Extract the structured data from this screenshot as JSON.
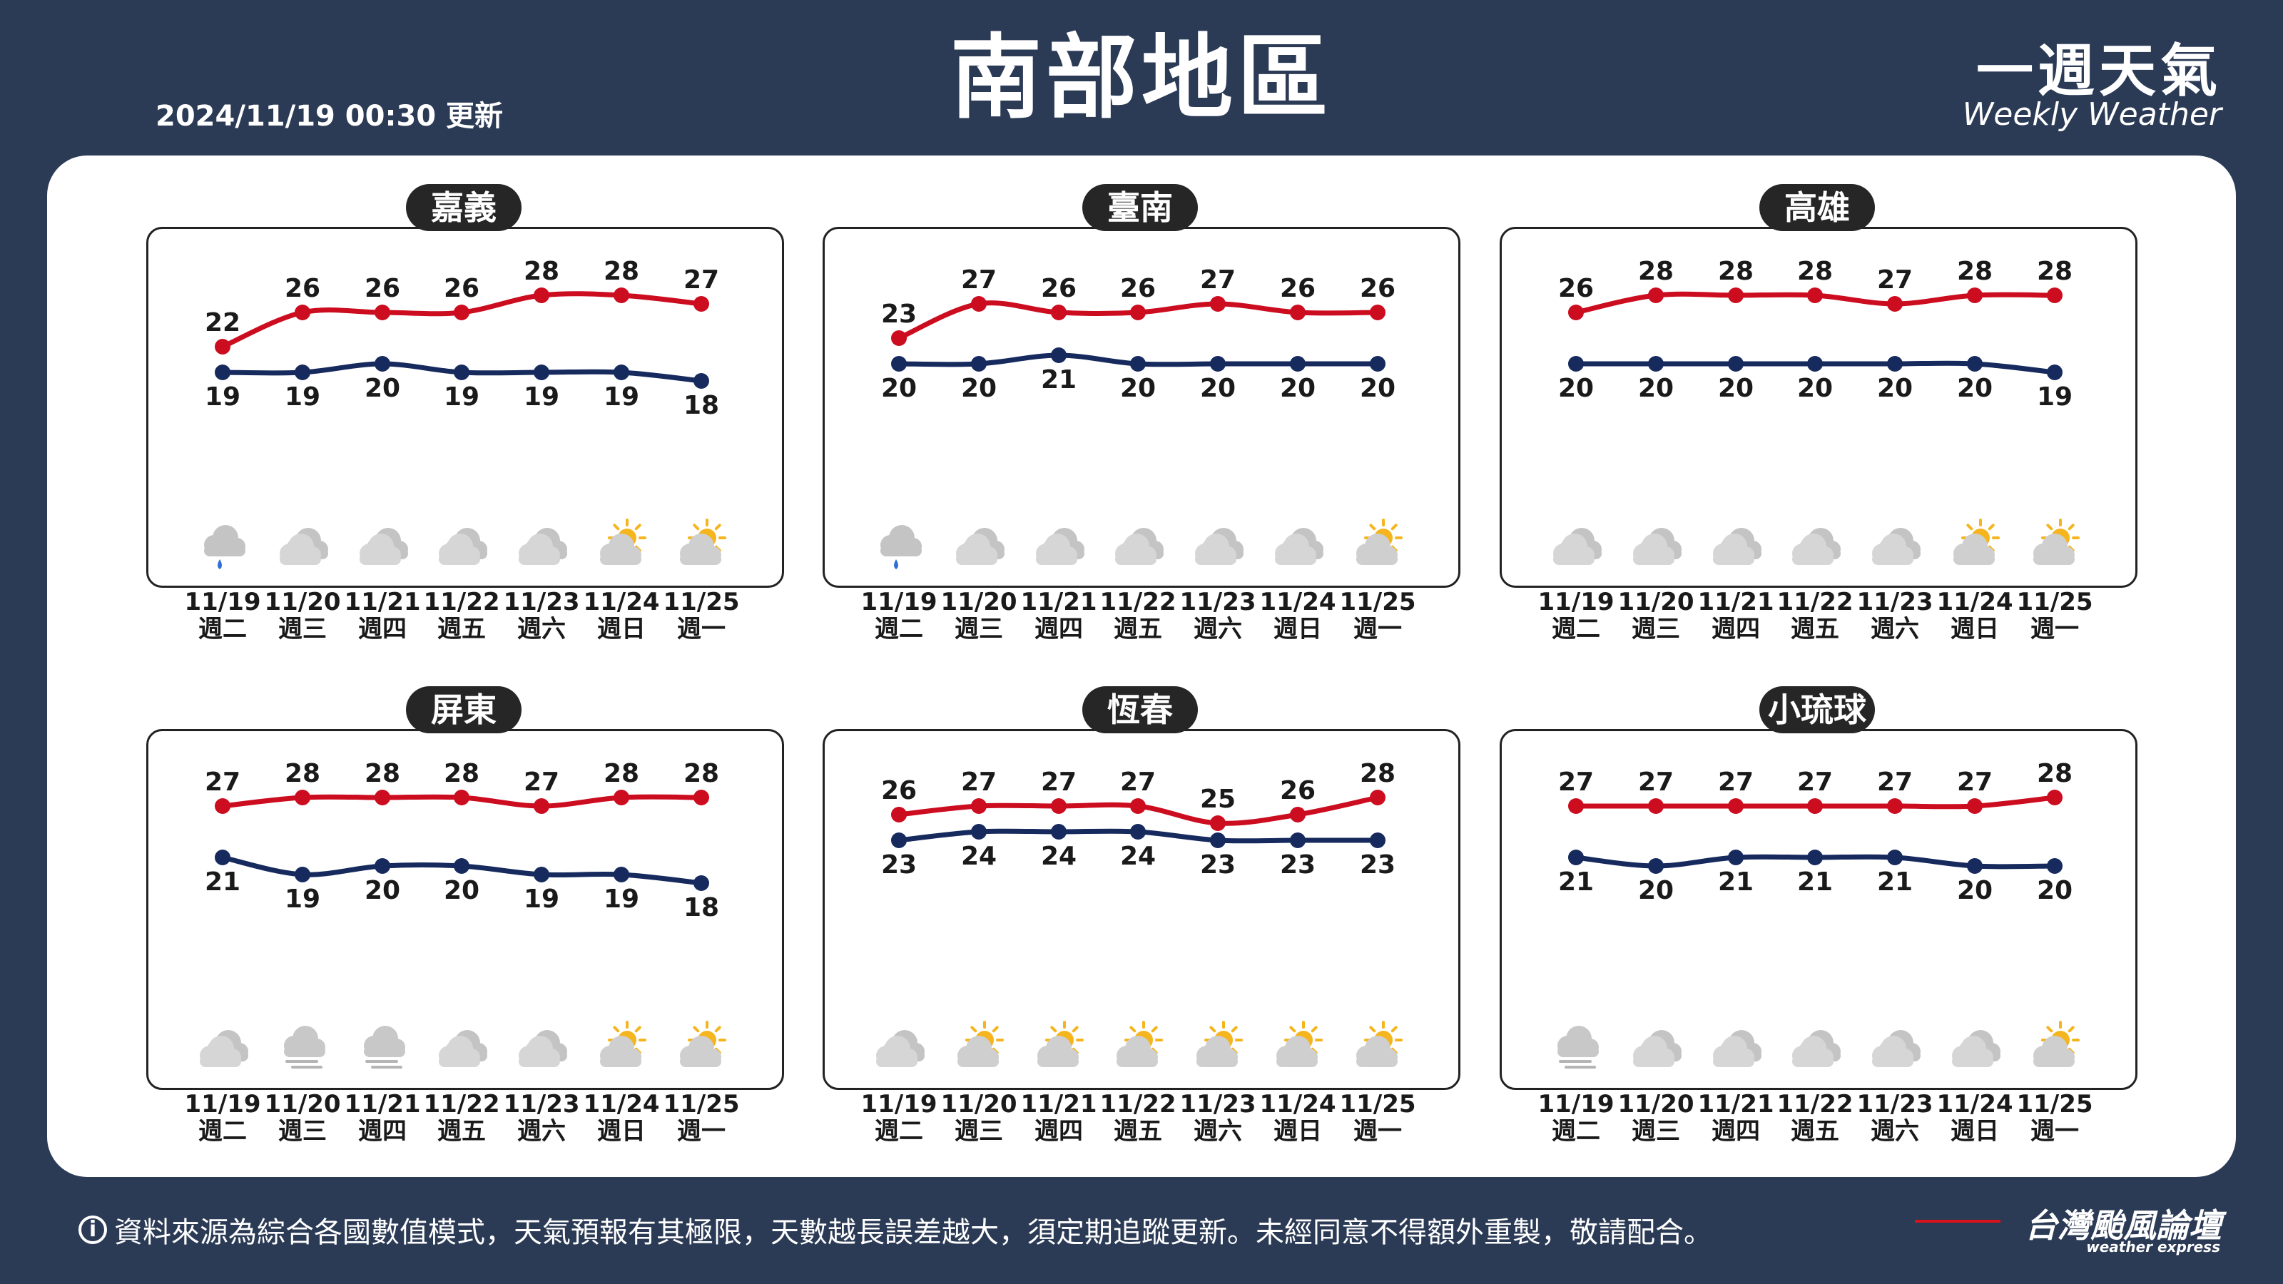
{
  "title": "南部地區",
  "update_time": "2024/11/19 00:30 更新",
  "brand": {
    "title": "一週天氣",
    "subtitle": "Weekly Weather"
  },
  "footer": {
    "info_icon": "i",
    "note": "資料來源為綜合各國數值模式，天氣預報有其極限，天數越長誤差越大，須定期追蹤更新。未經同意不得額外重製，敬請配合。",
    "logo_main": "台灣颱風論壇",
    "logo_sub": "weather express"
  },
  "colors": {
    "high": "#cc0c1f",
    "low": "#162a5e",
    "background": "#2b3a55"
  },
  "dates": [
    "11/19",
    "11/20",
    "11/21",
    "11/22",
    "11/23",
    "11/24",
    "11/25"
  ],
  "weekdays": [
    "週二",
    "週三",
    "週四",
    "週五",
    "週六",
    "週日",
    "週一"
  ],
  "chart_data": [
    {
      "type": "line",
      "title": "嘉義",
      "x": [
        "11/19",
        "11/20",
        "11/21",
        "11/22",
        "11/23",
        "11/24",
        "11/25"
      ],
      "series": [
        {
          "values": [
            22,
            26,
            26,
            26,
            28,
            28,
            27
          ]
        },
        {
          "values": [
            19,
            19,
            20,
            19,
            19,
            19,
            18
          ]
        }
      ],
      "icons": [
        "rain-cloud-icon",
        "cloudy-icon",
        "cloudy-icon",
        "cloudy-icon",
        "cloudy-icon",
        "partly-sunny-icon",
        "partly-sunny-icon"
      ]
    },
    {
      "type": "line",
      "title": "臺南",
      "x": [
        "11/19",
        "11/20",
        "11/21",
        "11/22",
        "11/23",
        "11/24",
        "11/25"
      ],
      "series": [
        {
          "values": [
            23,
            27,
            26,
            26,
            27,
            26,
            26
          ]
        },
        {
          "values": [
            20,
            20,
            21,
            20,
            20,
            20,
            20
          ]
        }
      ],
      "icons": [
        "rain-cloud-icon",
        "cloudy-icon",
        "cloudy-icon",
        "cloudy-icon",
        "cloudy-icon",
        "cloudy-icon",
        "partly-sunny-icon"
      ]
    },
    {
      "type": "line",
      "title": "高雄",
      "x": [
        "11/19",
        "11/20",
        "11/21",
        "11/22",
        "11/23",
        "11/24",
        "11/25"
      ],
      "series": [
        {
          "values": [
            26,
            28,
            28,
            28,
            27,
            28,
            28
          ]
        },
        {
          "values": [
            20,
            20,
            20,
            20,
            20,
            20,
            19
          ]
        }
      ],
      "icons": [
        "cloudy-icon",
        "cloudy-icon",
        "cloudy-icon",
        "cloudy-icon",
        "cloudy-icon",
        "partly-sunny-icon",
        "partly-sunny-icon"
      ]
    },
    {
      "type": "line",
      "title": "屏東",
      "x": [
        "11/19",
        "11/20",
        "11/21",
        "11/22",
        "11/23",
        "11/24",
        "11/25"
      ],
      "series": [
        {
          "values": [
            27,
            28,
            28,
            28,
            27,
            28,
            28
          ]
        },
        {
          "values": [
            21,
            19,
            20,
            20,
            19,
            19,
            18
          ]
        }
      ],
      "icons": [
        "cloudy-icon",
        "fog-icon",
        "fog-icon",
        "cloudy-icon",
        "cloudy-icon",
        "partly-sunny-icon",
        "partly-sunny-icon"
      ]
    },
    {
      "type": "line",
      "title": "恆春",
      "x": [
        "11/19",
        "11/20",
        "11/21",
        "11/22",
        "11/23",
        "11/24",
        "11/25"
      ],
      "series": [
        {
          "values": [
            26,
            27,
            27,
            27,
            25,
            26,
            28
          ]
        },
        {
          "values": [
            23,
            24,
            24,
            24,
            23,
            23,
            23
          ]
        }
      ],
      "icons": [
        "cloudy-icon",
        "partly-sunny-icon",
        "partly-sunny-icon",
        "partly-sunny-icon",
        "partly-sunny-icon",
        "partly-sunny-icon",
        "partly-sunny-icon"
      ]
    },
    {
      "type": "line",
      "title": "小琉球",
      "x": [
        "11/19",
        "11/20",
        "11/21",
        "11/22",
        "11/23",
        "11/24",
        "11/25"
      ],
      "series": [
        {
          "values": [
            27,
            27,
            27,
            27,
            27,
            27,
            28
          ]
        },
        {
          "values": [
            21,
            20,
            21,
            21,
            21,
            20,
            20
          ]
        }
      ],
      "icons": [
        "fog-icon",
        "cloudy-icon",
        "cloudy-icon",
        "cloudy-icon",
        "cloudy-icon",
        "cloudy-icon",
        "partly-sunny-icon"
      ]
    }
  ]
}
